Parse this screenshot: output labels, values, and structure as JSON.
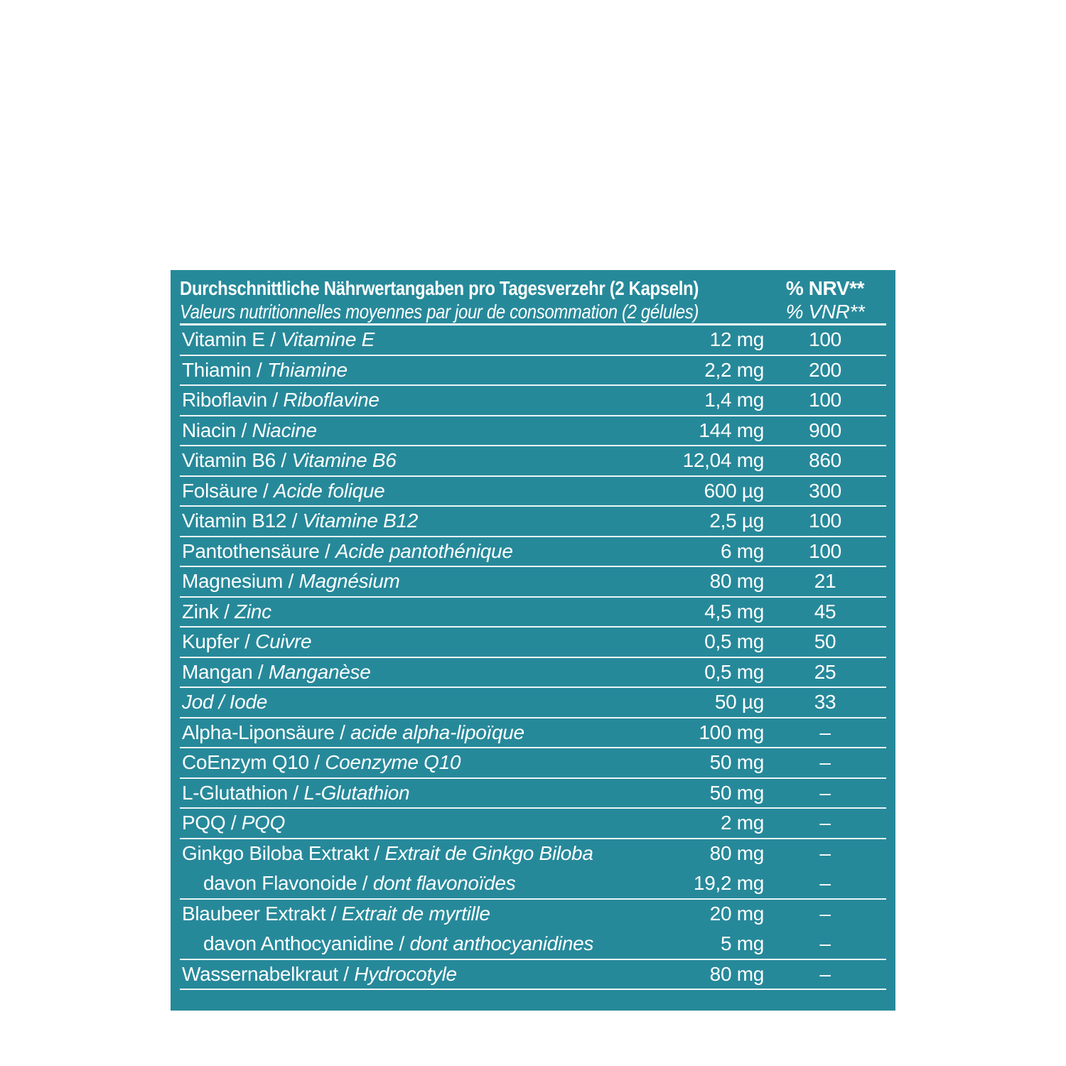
{
  "colors": {
    "panel_background": "#26899A",
    "text": "#FFFFFF",
    "divider": "#FFFFFF"
  },
  "table": {
    "header": {
      "title_de": "Durchschnittliche Nährwertangaben pro Tagesverzehr (2 Kapseln)",
      "title_fr": "Valeurs nutritionnelles moyennes par jour de consommation (2 gélules)",
      "nrv_label_de": "% NRV**",
      "nrv_label_fr": "% VNR**"
    },
    "name_separator": " / ",
    "rows": [
      {
        "de": "Vitamin E",
        "fr": "Vitamine E",
        "amount": "12 mg",
        "nrv": "100"
      },
      {
        "de": "Thiamin",
        "fr": "Thiamine",
        "amount": "2,2 mg",
        "nrv": "200"
      },
      {
        "de": "Riboflavin",
        "fr": "Riboflavine",
        "amount": "1,4 mg",
        "nrv": "100"
      },
      {
        "de": "Niacin",
        "fr": "Niacine",
        "amount": "144 mg",
        "nrv": "900"
      },
      {
        "de": "Vitamin B6",
        "fr": "Vitamine B6",
        "amount": "12,04 mg",
        "nrv": "860"
      },
      {
        "de": "Folsäure",
        "fr": "Acide folique",
        "amount": "600 µg",
        "nrv": "300"
      },
      {
        "de": "Vitamin B12",
        "fr": "Vitamine B12",
        "amount": "2,5 µg",
        "nrv": "100"
      },
      {
        "de": "Pantothensäure",
        "fr": "Acide pantothénique",
        "amount": "6 mg",
        "nrv": "100"
      },
      {
        "de": "Magnesium",
        "fr": "Magnésium",
        "amount": "80 mg",
        "nrv": "21"
      },
      {
        "de": "Zink",
        "fr": "Zinc",
        "amount": "4,5 mg",
        "nrv": "45"
      },
      {
        "de": "Kupfer",
        "fr": "Cuivre",
        "amount": "0,5 mg",
        "nrv": "50"
      },
      {
        "de": "Mangan",
        "fr": "Manganèse",
        "amount": "0,5 mg",
        "nrv": "25"
      },
      {
        "de": "Jod",
        "fr": "Iode",
        "amount": "50 µg",
        "nrv": "33",
        "italic_all": true
      },
      {
        "de": "Alpha-Liponsäure",
        "fr": "acide alpha-lipoïque",
        "amount": "100 mg",
        "nrv": "–"
      },
      {
        "de": "CoEnzym Q10",
        "fr": "Coenzyme Q10",
        "amount": "50 mg",
        "nrv": "–"
      },
      {
        "de": "L-Glutathion",
        "fr": "L-Glutathion",
        "amount": "50 mg",
        "nrv": "–"
      },
      {
        "de": "PQQ",
        "fr": "PQQ",
        "amount": "2 mg",
        "nrv": "–"
      },
      {
        "de": "Ginkgo Biloba Extrakt",
        "fr": "Extrait de Ginkgo Biloba",
        "amount": "80 mg",
        "nrv": "–",
        "separator": false
      },
      {
        "de": "davon Flavonoide",
        "fr": "dont flavonoïdes",
        "amount": "19,2 mg",
        "nrv": "–",
        "indent": true
      },
      {
        "de": "Blaubeer Extrakt",
        "fr": "Extrait de myrtille",
        "amount": "20 mg",
        "nrv": "–",
        "separator": false
      },
      {
        "de": "davon Anthocyanidine",
        "fr": "dont anthocyanidines",
        "amount": "5 mg",
        "nrv": "–",
        "indent": true
      },
      {
        "de": "Wassernabelkraut",
        "fr": "Hydrocotyle",
        "amount": "80 mg",
        "nrv": "–"
      }
    ]
  }
}
